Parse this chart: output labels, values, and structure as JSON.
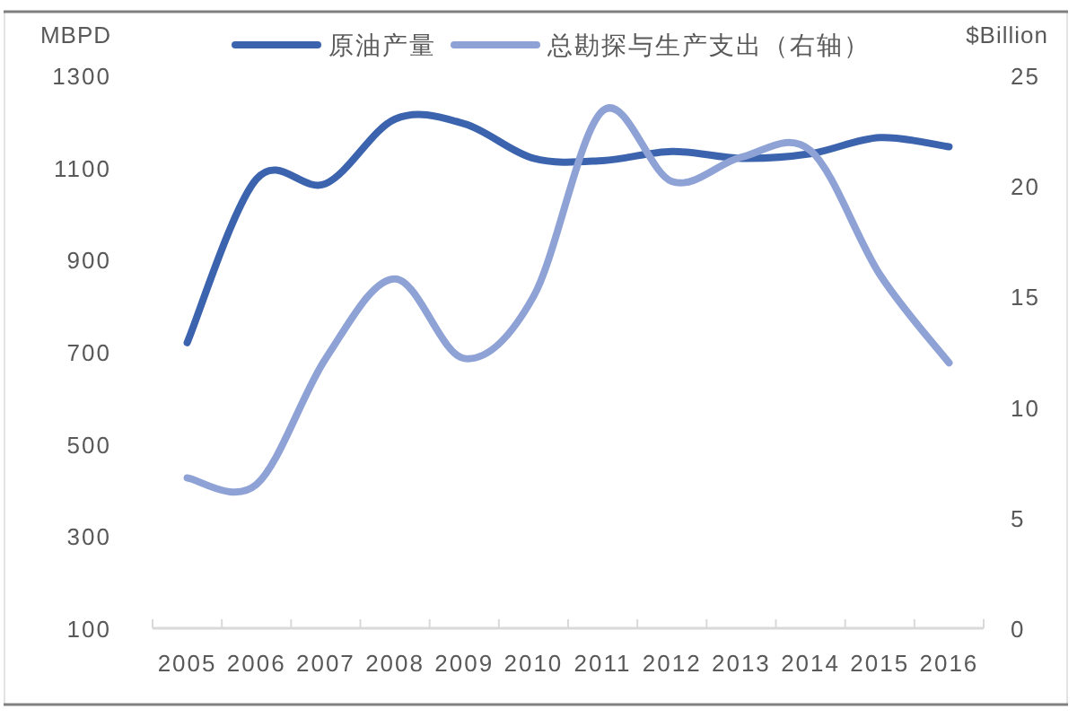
{
  "chart_data": {
    "type": "line",
    "categories": [
      "2005",
      "2006",
      "2007",
      "2008",
      "2009",
      "2010",
      "2011",
      "2012",
      "2013",
      "2014",
      "2015",
      "2016"
    ],
    "series": [
      {
        "name": "原油产量",
        "color": "#3c63ad",
        "values": [
          720,
          1075,
          1065,
          1205,
          1195,
          1120,
          1115,
          1135,
          1120,
          1130,
          1165,
          1145
        ]
      },
      {
        "name": "总勘探与生产支出（右轴）",
        "color": "#8fa2d6",
        "axis": "y2",
        "values": [
          6.8,
          6.5,
          12.2,
          15.8,
          12.2,
          15.0,
          23.4,
          20.2,
          21.3,
          21.6,
          16.0,
          12.0
        ]
      }
    ],
    "ylabel": "MBPD",
    "y2label": "$Billion",
    "ylim": [
      100,
      1300
    ],
    "yticks": [
      100,
      300,
      500,
      700,
      900,
      1100,
      1300
    ],
    "y2lim": [
      0,
      25
    ],
    "y2ticks": [
      0,
      5,
      10,
      15,
      20,
      25
    ],
    "legend": "top",
    "grid": false,
    "marker": "none",
    "line_style": "solid"
  }
}
